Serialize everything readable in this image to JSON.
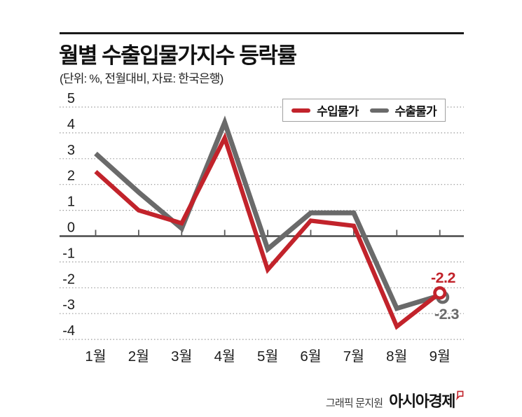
{
  "header": {
    "title": "월별 수출입물가지수 등락률",
    "subtitle": "(단위: %, 전월대비, 자료: 한국은행)"
  },
  "legend": {
    "items": [
      {
        "label": "수입물가",
        "color": "#c2232b"
      },
      {
        "label": "수출물가",
        "color": "#6a6a6a"
      }
    ]
  },
  "chart_data": {
    "type": "line",
    "title": "월별 수출입물가지수 등락률",
    "unit": "%",
    "comparison": "전월대비",
    "source": "한국은행",
    "categories": [
      "1월",
      "2월",
      "3월",
      "4월",
      "5월",
      "6월",
      "7월",
      "8월",
      "9월"
    ],
    "series": [
      {
        "name": "수입물가",
        "color": "#c2232b",
        "values": [
          2.5,
          1.0,
          0.5,
          3.8,
          -1.3,
          0.6,
          0.4,
          -3.5,
          -2.2
        ]
      },
      {
        "name": "수출물가",
        "color": "#6a6a6a",
        "values": [
          3.2,
          1.7,
          0.3,
          4.4,
          -0.5,
          0.9,
          0.9,
          -2.8,
          -2.3
        ]
      }
    ],
    "yticks": [
      5,
      4,
      3,
      2,
      1,
      0,
      -1,
      -2,
      -3,
      -4
    ],
    "ylim": [
      -4.5,
      5.5
    ],
    "grid": "dotted-horizontal",
    "legend_position": "top-right-inside",
    "end_labels": [
      {
        "series": "수입물가",
        "text": "-2.2",
        "color": "#c2232b"
      },
      {
        "series": "수출물가",
        "text": "-2.3",
        "color": "#6a6a6a"
      }
    ]
  },
  "footer": {
    "credit": "그래픽 문지원",
    "brand": "아시아경제"
  },
  "colors": {
    "import_line": "#c2232b",
    "export_line": "#6a6a6a",
    "gridline": "#9a9a9a",
    "axis_line": "#484848",
    "text": "#1c1c1c",
    "rule": "#191919"
  }
}
